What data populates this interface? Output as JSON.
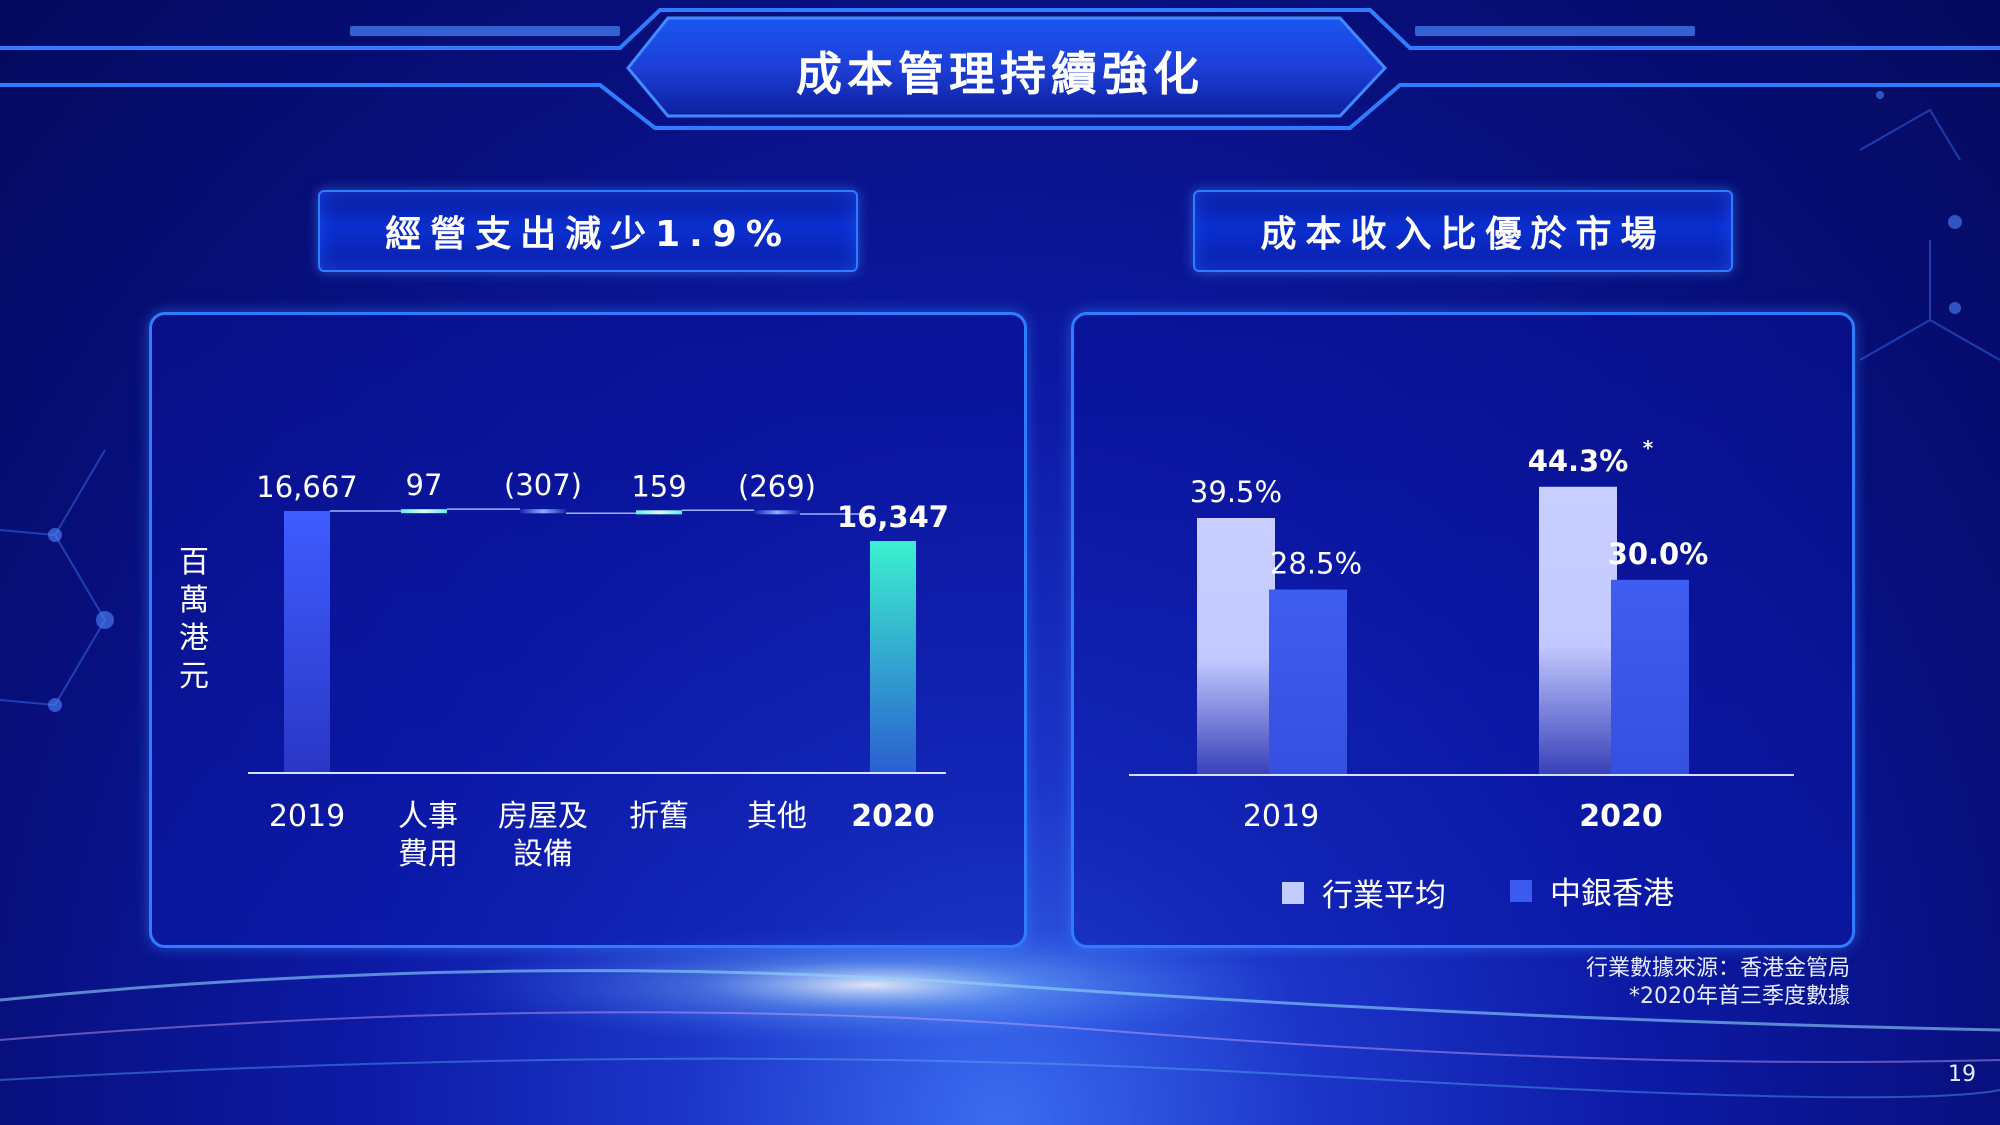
{
  "title": "成本管理持續強化",
  "left_panel": {
    "subtitle": "經營支出減少1.9%",
    "y_unit": "百萬港元"
  },
  "right_panel": {
    "subtitle": "成本收入比優於市場"
  },
  "notes": [
    "行業數據來源：香港金管局",
    "*2020年首三季度數據"
  ],
  "page_number": "19",
  "colors": {
    "accent": "#2f7dff",
    "bank": "#3b5bf0",
    "industry": "#c4ccff",
    "teal": "#39e0c8"
  },
  "chart_data": [
    {
      "type": "bar",
      "subtype": "waterfall",
      "categories": [
        "2019",
        "人事費用",
        "房屋及設備",
        "折舊",
        "其他",
        "2020"
      ],
      "category_lines": [
        [
          "2019"
        ],
        [
          "人事",
          "費用"
        ],
        [
          "房屋及",
          "設備"
        ],
        [
          "折舊"
        ],
        [
          "其他"
        ],
        [
          "2020"
        ]
      ],
      "values": [
        16667,
        97,
        -307,
        159,
        -269,
        16347
      ],
      "labels": [
        "16,667",
        "97",
        "(307)",
        "159",
        "(269)",
        "16,347"
      ],
      "ylabel": "百萬港元",
      "bold": [
        false,
        false,
        false,
        false,
        false,
        true
      ]
    },
    {
      "type": "bar",
      "categories": [
        "2019",
        "2020"
      ],
      "category_bold": [
        false,
        true
      ],
      "series": [
        {
          "name": "行業平均",
          "values": [
            39.5,
            44.3
          ],
          "labels": [
            "39.5%",
            "44.3%"
          ],
          "marks": [
            "",
            "*"
          ]
        },
        {
          "name": "中銀香港",
          "values": [
            28.5,
            30.0
          ],
          "labels": [
            "28.5%",
            "30.0%"
          ],
          "marks": [
            "",
            ""
          ]
        }
      ],
      "legend": "bottom"
    }
  ]
}
